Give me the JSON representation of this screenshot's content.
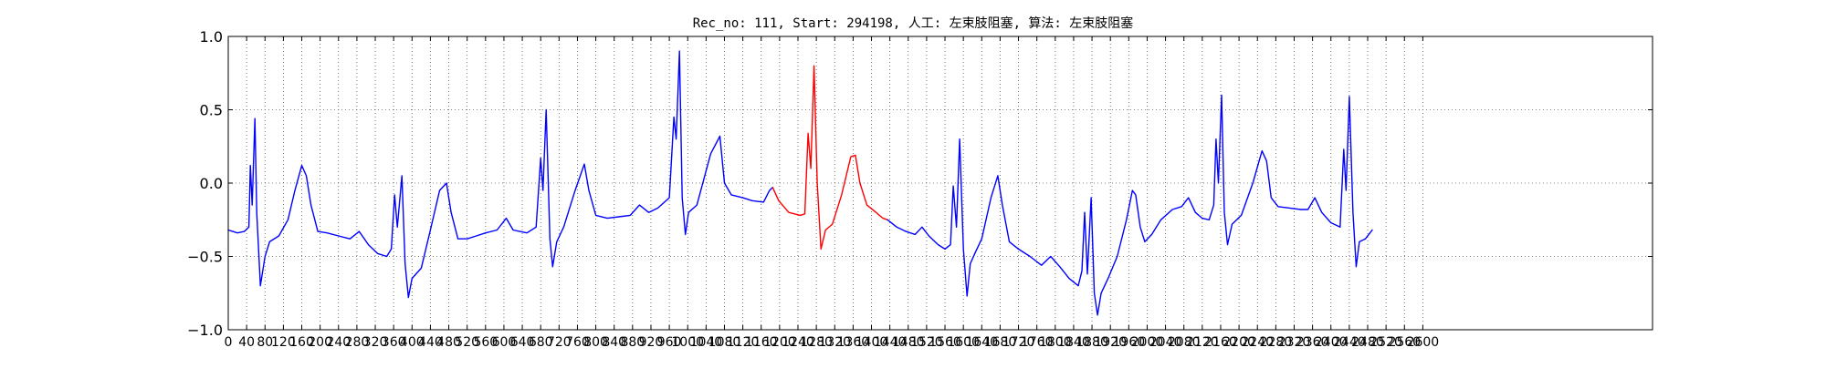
{
  "chart_data": {
    "type": "line",
    "title": "Rec_no: 111, Start: 294198, 人工: 左束肢阻塞, 算法: 左束肢阻塞",
    "xlabel": "",
    "ylabel": "",
    "xlim": [
      0,
      3100
    ],
    "ylim": [
      -1.0,
      1.0
    ],
    "yticks": [
      -1.0,
      -0.5,
      0.0,
      0.5,
      1.0
    ],
    "ytick_labels": [
      "−1.0",
      "−0.5",
      "0.0",
      "0.5",
      "1.0"
    ],
    "xticks": [
      0,
      40,
      80,
      120,
      160,
      200,
      240,
      280,
      320,
      360,
      400,
      440,
      480,
      520,
      560,
      600,
      640,
      680,
      720,
      760,
      800,
      840,
      880,
      920,
      960,
      1000,
      1040,
      1080,
      1120,
      1160,
      1200,
      1240,
      1280,
      1320,
      1360,
      1400,
      1440,
      1480,
      1520,
      1560,
      1600,
      1640,
      1680,
      1720,
      1760,
      1800,
      1840,
      1880,
      1920,
      1960,
      2000,
      2040,
      2080,
      2120,
      2160,
      2200,
      2240,
      2280,
      2320,
      2360,
      2400,
      2440,
      2480,
      2520,
      2560,
      2600
    ],
    "grid": true,
    "grid_style": "dotted",
    "legend": "none",
    "colors": {
      "main": "#0000ff",
      "highlight": "#ff0000",
      "grid": "#555555"
    },
    "highlight_range": [
      1185,
      1435
    ],
    "series": [
      {
        "color": "#0000ff",
        "points": [
          [
            0,
            -0.32
          ],
          [
            20,
            -0.34
          ],
          [
            35,
            -0.33
          ],
          [
            45,
            -0.3
          ],
          [
            48,
            0.12
          ],
          [
            52,
            -0.15
          ],
          [
            58,
            0.44
          ],
          [
            62,
            -0.2
          ],
          [
            70,
            -0.7
          ],
          [
            80,
            -0.5
          ],
          [
            90,
            -0.4
          ],
          [
            110,
            -0.36
          ],
          [
            130,
            -0.25
          ],
          [
            145,
            -0.05
          ],
          [
            160,
            0.12
          ],
          [
            170,
            0.05
          ],
          [
            180,
            -0.15
          ],
          [
            195,
            -0.33
          ],
          [
            215,
            -0.34
          ],
          [
            240,
            -0.36
          ],
          [
            265,
            -0.38
          ],
          [
            285,
            -0.33
          ],
          [
            305,
            -0.42
          ],
          [
            325,
            -0.48
          ],
          [
            345,
            -0.5
          ],
          [
            355,
            -0.45
          ],
          [
            362,
            -0.08
          ],
          [
            368,
            -0.3
          ],
          [
            378,
            0.05
          ],
          [
            385,
            -0.55
          ],
          [
            392,
            -0.78
          ],
          [
            400,
            -0.65
          ],
          [
            420,
            -0.58
          ],
          [
            440,
            -0.32
          ],
          [
            460,
            -0.05
          ],
          [
            475,
            0.0
          ],
          [
            485,
            -0.2
          ],
          [
            500,
            -0.38
          ],
          [
            520,
            -0.38
          ],
          [
            540,
            -0.36
          ],
          [
            560,
            -0.34
          ],
          [
            585,
            -0.32
          ],
          [
            605,
            -0.24
          ],
          [
            620,
            -0.32
          ],
          [
            650,
            -0.34
          ],
          [
            670,
            -0.3
          ],
          [
            680,
            0.17
          ],
          [
            685,
            -0.05
          ],
          [
            692,
            0.5
          ],
          [
            700,
            -0.38
          ],
          [
            706,
            -0.57
          ],
          [
            715,
            -0.4
          ],
          [
            730,
            -0.3
          ],
          [
            755,
            -0.05
          ],
          [
            775,
            0.13
          ],
          [
            785,
            -0.05
          ],
          [
            800,
            -0.22
          ],
          [
            825,
            -0.24
          ],
          [
            850,
            -0.23
          ],
          [
            875,
            -0.22
          ],
          [
            895,
            -0.15
          ],
          [
            915,
            -0.2
          ],
          [
            935,
            -0.17
          ],
          [
            960,
            -0.1
          ],
          [
            970,
            0.45
          ],
          [
            975,
            0.3
          ],
          [
            982,
            0.9
          ],
          [
            988,
            -0.1
          ],
          [
            995,
            -0.35
          ],
          [
            1002,
            -0.2
          ],
          [
            1020,
            -0.15
          ],
          [
            1050,
            0.2
          ],
          [
            1070,
            0.32
          ],
          [
            1080,
            0.0
          ],
          [
            1095,
            -0.08
          ],
          [
            1120,
            -0.1
          ],
          [
            1140,
            -0.12
          ],
          [
            1165,
            -0.13
          ],
          [
            1178,
            -0.05
          ],
          [
            1185,
            -0.03
          ]
        ]
      },
      {
        "color": "#ff0000",
        "points": [
          [
            1185,
            -0.03
          ],
          [
            1198,
            -0.12
          ],
          [
            1220,
            -0.2
          ],
          [
            1245,
            -0.22
          ],
          [
            1255,
            -0.21
          ],
          [
            1262,
            0.34
          ],
          [
            1268,
            0.1
          ],
          [
            1275,
            0.8
          ],
          [
            1282,
            0.0
          ],
          [
            1290,
            -0.45
          ],
          [
            1300,
            -0.32
          ],
          [
            1315,
            -0.28
          ],
          [
            1335,
            -0.08
          ],
          [
            1355,
            0.18
          ],
          [
            1365,
            0.19
          ],
          [
            1375,
            0.0
          ],
          [
            1390,
            -0.15
          ],
          [
            1410,
            -0.2
          ],
          [
            1425,
            -0.24
          ],
          [
            1435,
            -0.25
          ]
        ]
      },
      {
        "color": "#0000ff",
        "points": [
          [
            1435,
            -0.25
          ],
          [
            1455,
            -0.3
          ],
          [
            1475,
            -0.33
          ],
          [
            1495,
            -0.35
          ],
          [
            1510,
            -0.3
          ],
          [
            1525,
            -0.36
          ],
          [
            1545,
            -0.42
          ],
          [
            1560,
            -0.45
          ],
          [
            1572,
            -0.42
          ],
          [
            1578,
            -0.02
          ],
          [
            1585,
            -0.3
          ],
          [
            1592,
            0.3
          ],
          [
            1600,
            -0.45
          ],
          [
            1608,
            -0.77
          ],
          [
            1615,
            -0.55
          ],
          [
            1625,
            -0.48
          ],
          [
            1640,
            -0.38
          ],
          [
            1660,
            -0.1
          ],
          [
            1675,
            0.05
          ],
          [
            1685,
            -0.15
          ],
          [
            1700,
            -0.4
          ],
          [
            1720,
            -0.45
          ],
          [
            1745,
            -0.5
          ],
          [
            1770,
            -0.56
          ],
          [
            1790,
            -0.5
          ],
          [
            1810,
            -0.57
          ],
          [
            1830,
            -0.65
          ],
          [
            1850,
            -0.7
          ],
          [
            1858,
            -0.6
          ],
          [
            1864,
            -0.2
          ],
          [
            1870,
            -0.62
          ],
          [
            1878,
            -0.1
          ],
          [
            1885,
            -0.75
          ],
          [
            1892,
            -0.9
          ],
          [
            1900,
            -0.75
          ],
          [
            1915,
            -0.65
          ],
          [
            1935,
            -0.5
          ],
          [
            1955,
            -0.25
          ],
          [
            1968,
            -0.05
          ],
          [
            1975,
            -0.08
          ],
          [
            1985,
            -0.3
          ],
          [
            1995,
            -0.4
          ],
          [
            2010,
            -0.35
          ],
          [
            2030,
            -0.25
          ],
          [
            2055,
            -0.18
          ],
          [
            2075,
            -0.16
          ],
          [
            2090,
            -0.1
          ],
          [
            2105,
            -0.2
          ],
          [
            2120,
            -0.24
          ],
          [
            2135,
            -0.25
          ],
          [
            2145,
            -0.15
          ],
          [
            2150,
            0.3
          ],
          [
            2155,
            0.0
          ],
          [
            2162,
            0.6
          ],
          [
            2168,
            -0.2
          ],
          [
            2175,
            -0.42
          ],
          [
            2185,
            -0.28
          ],
          [
            2205,
            -0.22
          ],
          [
            2230,
            0.0
          ],
          [
            2250,
            0.22
          ],
          [
            2260,
            0.15
          ],
          [
            2270,
            -0.1
          ],
          [
            2285,
            -0.16
          ],
          [
            2310,
            -0.17
          ],
          [
            2335,
            -0.18
          ],
          [
            2350,
            -0.18
          ],
          [
            2365,
            -0.1
          ],
          [
            2380,
            -0.2
          ],
          [
            2400,
            -0.27
          ],
          [
            2420,
            -0.3
          ],
          [
            2428,
            0.23
          ],
          [
            2433,
            -0.05
          ],
          [
            2440,
            0.59
          ],
          [
            2448,
            -0.2
          ],
          [
            2455,
            -0.57
          ],
          [
            2462,
            -0.4
          ],
          [
            2475,
            -0.38
          ],
          [
            2490,
            -0.32
          ]
        ]
      }
    ]
  }
}
